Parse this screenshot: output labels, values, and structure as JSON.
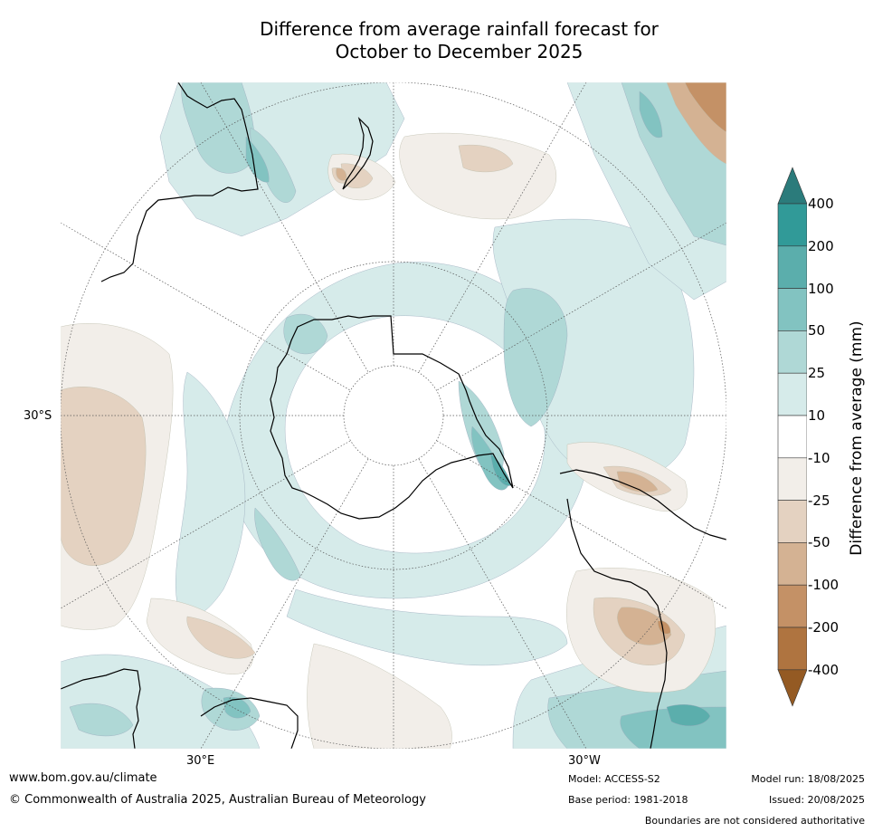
{
  "title": {
    "line1": "Difference from average rainfall forecast for",
    "line2": "October to December 2025"
  },
  "map": {
    "projection": "south-polar stereographic",
    "lat_label": "30°S",
    "lon_labels": {
      "left": "30°E",
      "right": "30°W"
    }
  },
  "colorbar": {
    "title": "Difference from average (mm)",
    "ticks": [
      "400",
      "200",
      "100",
      "50",
      "25",
      "10",
      "-10",
      "-25",
      "-50",
      "-100",
      "-200",
      "-400"
    ],
    "colors": [
      "#2b7b7b",
      "#319a98",
      "#5baeac",
      "#82c3c1",
      "#afd8d6",
      "#d6ebea",
      "#ffffff",
      "#f2eee9",
      "#e4d2c1",
      "#d4b293",
      "#c49166",
      "#af7440",
      "#945a23"
    ]
  },
  "footer": {
    "url": "www.bom.gov.au/climate",
    "copyright": "© Commonwealth of Australia 2025, Australian Bureau of Meteorology",
    "model": "Model: ACCESS-S2",
    "base_period": "Base period: 1981-2018",
    "model_run": "Model run: 18/08/2025",
    "issued": "Issued: 20/08/2025",
    "disclaimer": "Boundaries are not considered authoritative"
  }
}
